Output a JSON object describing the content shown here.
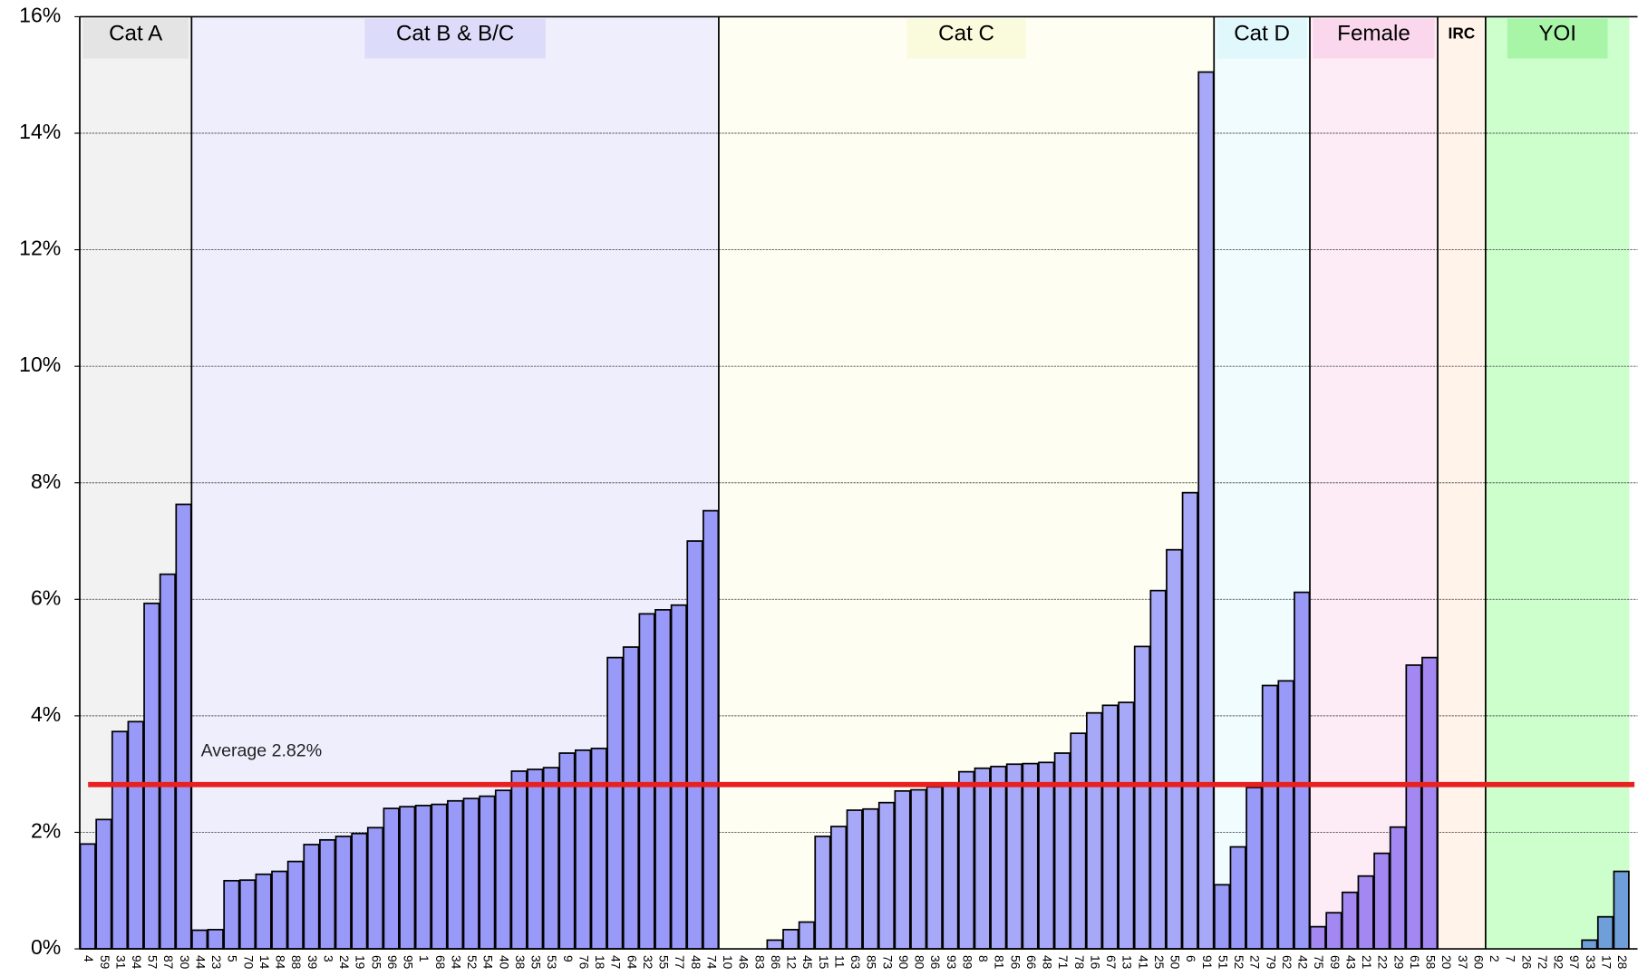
{
  "chart_data": {
    "type": "bar",
    "ylim": [
      0,
      16
    ],
    "yticks": [
      {
        "value": 0,
        "label": "0%"
      },
      {
        "value": 2,
        "label": "2%"
      },
      {
        "value": 4,
        "label": "4%"
      },
      {
        "value": 6,
        "label": "6%"
      },
      {
        "value": 8,
        "label": "8%"
      },
      {
        "value": 10,
        "label": "10%"
      },
      {
        "value": 12,
        "label": "12%"
      },
      {
        "value": 14,
        "label": "14%"
      },
      {
        "value": 16,
        "label": "16%"
      }
    ],
    "grid": true,
    "average": 2.82,
    "average_label": "Average 2.82%",
    "average_color": "#e82020",
    "groups": [
      {
        "name": "Cat A",
        "background": "#f2f2f2",
        "label_background": "#e4e4e4",
        "color": "#9999f8",
        "categories": [
          "4",
          "59",
          "31",
          "94",
          "57",
          "87",
          "30"
        ],
        "values": [
          1.8,
          2.22,
          3.73,
          3.9,
          5.93,
          6.43,
          7.63
        ]
      },
      {
        "name": "Cat B & B/C",
        "background": "#eeeefd",
        "label_background": "#dcdcfa",
        "color": "#9999f8",
        "categories": [
          "44",
          "23",
          "5",
          "70",
          "14",
          "84",
          "88",
          "39",
          "3",
          "24",
          "19",
          "65",
          "96",
          "95",
          "1",
          "68",
          "34",
          "52",
          "54",
          "40",
          "38",
          "35",
          "53",
          "9",
          "76",
          "18",
          "47",
          "64",
          "32",
          "55",
          "77",
          "48",
          "74"
        ],
        "values": [
          0.32,
          0.33,
          1.17,
          1.18,
          1.28,
          1.33,
          1.5,
          1.79,
          1.87,
          1.93,
          1.98,
          2.08,
          2.41,
          2.44,
          2.46,
          2.48,
          2.54,
          2.58,
          2.62,
          2.72,
          3.05,
          3.08,
          3.11,
          3.36,
          3.41,
          3.44,
          5.0,
          5.18,
          5.75,
          5.82,
          5.9,
          7.0,
          7.52
        ]
      },
      {
        "name": "Cat C",
        "background": "#fefef2",
        "label_background": "#fafadc",
        "color": "#a8a8f8",
        "categories": [
          "10",
          "46",
          "83",
          "86",
          "12",
          "45",
          "15",
          "11",
          "63",
          "85",
          "73",
          "90",
          "80",
          "36",
          "93",
          "89",
          "8",
          "81",
          "56",
          "66",
          "48",
          "71",
          "78",
          "16",
          "67",
          "13",
          "41",
          "25",
          "50",
          "6",
          "91"
        ],
        "values": [
          0,
          0,
          0,
          0.15,
          0.33,
          0.46,
          1.93,
          2.1,
          2.38,
          2.4,
          2.51,
          2.71,
          2.73,
          2.78,
          2.85,
          3.04,
          3.1,
          3.13,
          3.17,
          3.18,
          3.2,
          3.36,
          3.7,
          4.05,
          4.18,
          4.23,
          5.19,
          6.15,
          6.85,
          7.83,
          15.05
        ]
      },
      {
        "name": "Cat D",
        "background": "#f0fcfe",
        "label_background": "#e0f8fc",
        "color": "#9999f8",
        "categories": [
          "51",
          "52",
          "27",
          "79",
          "62",
          "42"
        ],
        "values": [
          1.1,
          1.75,
          2.77,
          4.52,
          4.6,
          6.12
        ]
      },
      {
        "name": "Female",
        "background": "#fdecf5",
        "label_background": "#fad7ec",
        "color": "#a288f0",
        "categories": [
          "75",
          "69",
          "43",
          "21",
          "22",
          "29",
          "61",
          "58"
        ],
        "values": [
          0.38,
          0.62,
          0.97,
          1.25,
          1.64,
          2.09,
          4.87,
          5.0
        ]
      },
      {
        "name": "IRC",
        "background": "#fff3ea",
        "label_background": "#fff3ea",
        "color": "#9999f8",
        "categories": [
          "20",
          "37",
          "60"
        ],
        "values": [
          0,
          0,
          0
        ]
      },
      {
        "name": "YOI",
        "background": "#ccffcc",
        "label_background": "#a8f5a8",
        "color": "#6f9fd8",
        "categories": [
          "2",
          "7",
          "26",
          "72",
          "92",
          "97",
          "33",
          "17",
          "28"
        ],
        "values": [
          0,
          0,
          0,
          0,
          0,
          0,
          0.15,
          0.55,
          1.33
        ]
      }
    ]
  }
}
